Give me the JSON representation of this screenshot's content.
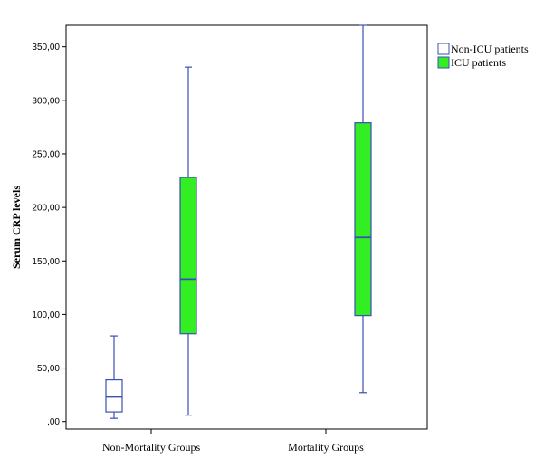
{
  "chart_data": {
    "type": "box",
    "title": "",
    "xlabel": "",
    "ylabel": "Serum CRP levels",
    "ylim": [
      -7,
      370
    ],
    "yticks": [
      {
        "value": 0,
        "label": ",00"
      },
      {
        "value": 50,
        "label": "50,00"
      },
      {
        "value": 100,
        "label": "100,00"
      },
      {
        "value": 150,
        "label": "150,00"
      },
      {
        "value": 200,
        "label": "200,00"
      },
      {
        "value": 250,
        "label": "250,00"
      },
      {
        "value": 300,
        "label": "300,00"
      },
      {
        "value": 350,
        "label": "350,00"
      }
    ],
    "categories": [
      "Non-Mortality Groups",
      "Mortality Groups"
    ],
    "series": [
      {
        "name": "Non-ICU patients",
        "color": "#ffffff",
        "stroke": "#3a4fb5",
        "boxes": [
          {
            "category": "Non-Mortality Groups",
            "min": 3,
            "q1": 9,
            "median": 23,
            "q3": 39,
            "max": 80
          }
        ]
      },
      {
        "name": "ICU patients",
        "color": "#33ee22",
        "stroke": "#3a4fb5",
        "boxes": [
          {
            "category": "Non-Mortality Groups",
            "min": 6,
            "q1": 82,
            "median": 133,
            "q3": 228,
            "max": 331
          },
          {
            "category": "Mortality Groups",
            "min": 27,
            "q1": 99,
            "median": 172,
            "q3": 279,
            "max": 370
          }
        ]
      }
    ],
    "legend": {
      "position": "top-right"
    },
    "grid": false
  }
}
